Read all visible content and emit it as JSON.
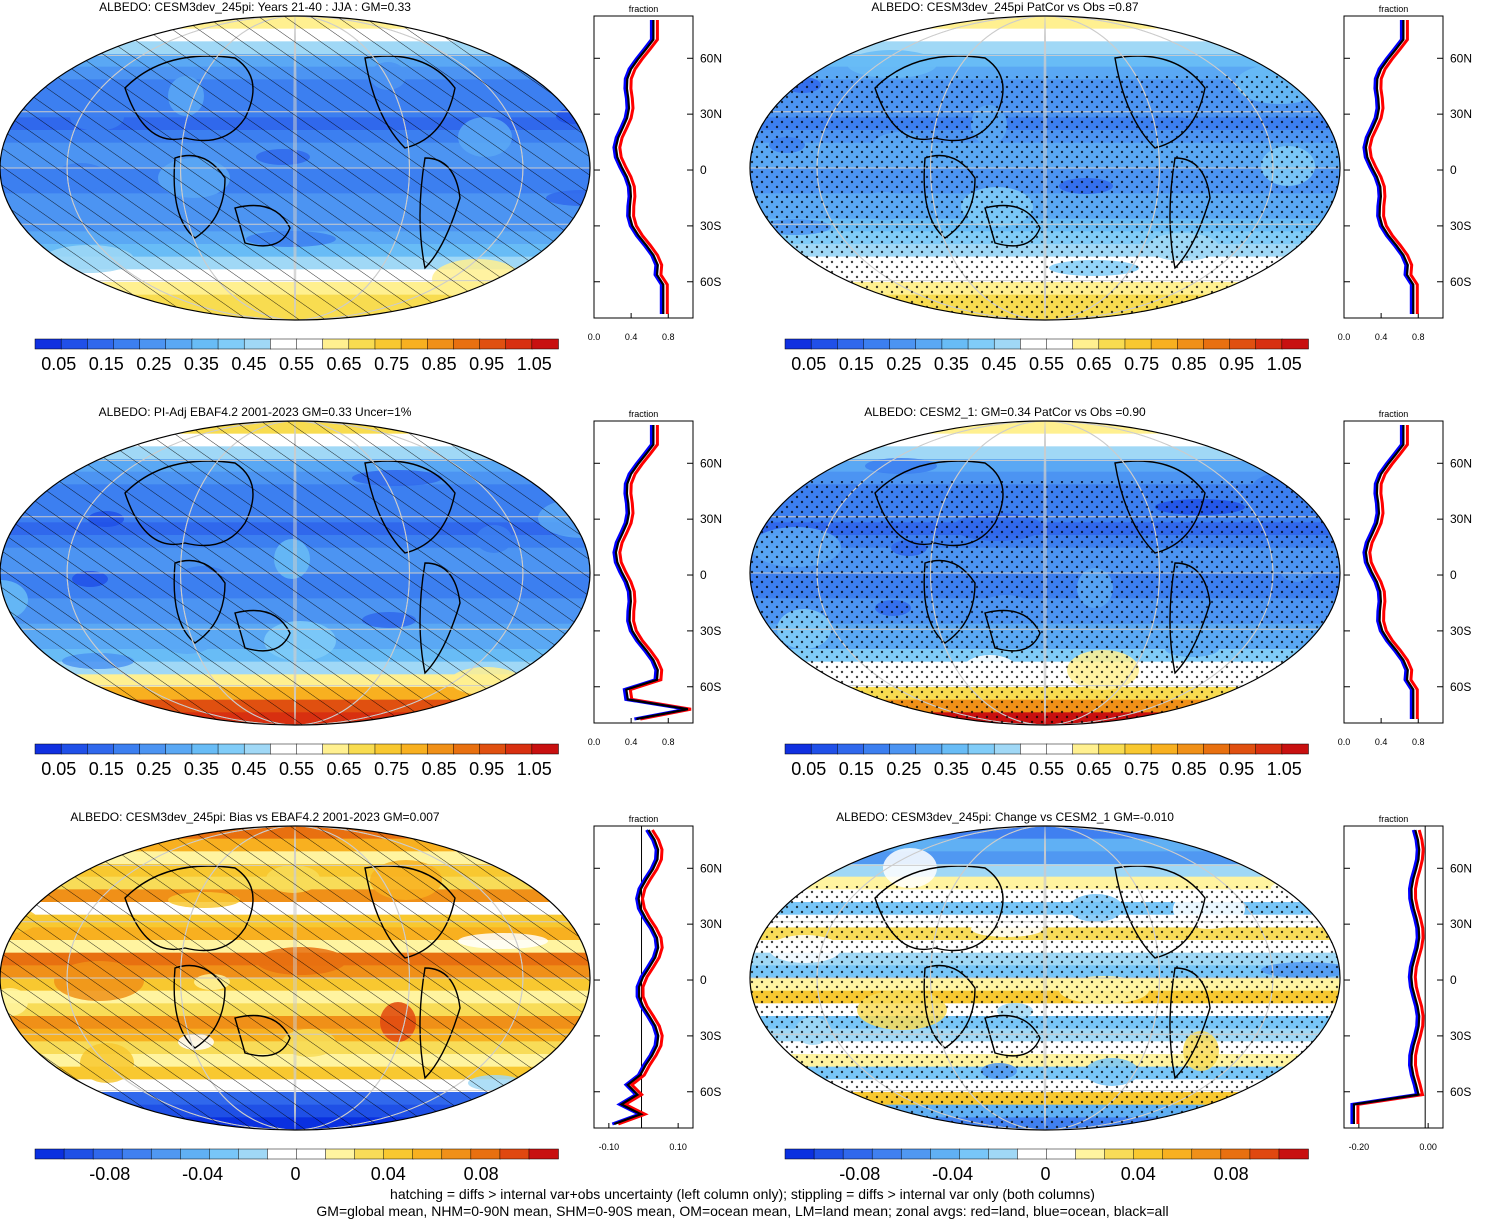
{
  "colors": {
    "seq": [
      "#1030e0",
      "#2050e8",
      "#3068ec",
      "#3c7ff0",
      "#4c94f2",
      "#5aa8f4",
      "#68bcf6",
      "#80ccf8",
      "#a0d8f6",
      "#ffffff",
      "#ffffff",
      "#fff090",
      "#f8dc50",
      "#f8c830",
      "#f8b020",
      "#f09018",
      "#e87010",
      "#e05010",
      "#d83010",
      "#c81010"
    ],
    "div": [
      "#0a30e0",
      "#1f50e6",
      "#3068ec",
      "#4080f0",
      "#5098f2",
      "#60b0f4",
      "#78c6f8",
      "#a0d8f6",
      "#ffffff",
      "#ffffff",
      "#fff4a0",
      "#f8dc58",
      "#f8c830",
      "#f8b020",
      "#f09018",
      "#e87010",
      "#e04810",
      "#c81010"
    ],
    "land_line": "#000000",
    "zonal_land": "#ff0000",
    "zonal_ocean": "#0000ff",
    "zonal_all": "#000000"
  },
  "lat_labels": [
    "60N",
    "30N",
    "0",
    "30S",
    "60S"
  ],
  "panels": [
    {
      "title": "ALBEDO: CESM3dev_245pi: Years 21-40 : JJA : GM=0.33",
      "kind": "seq",
      "zonal_header": "fraction",
      "zonal_ticks": [
        "0.0",
        "0.4",
        "0.8"
      ],
      "cbar_labels": [
        "0.05",
        "0.15",
        "0.25",
        "0.35",
        "0.45",
        "0.55",
        "0.65",
        "0.75",
        "0.85",
        "0.95",
        "1.05"
      ]
    },
    {
      "title": "ALBEDO: CESM3dev_245pi PatCor vs Obs =0.87",
      "kind": "seq",
      "zonal_header": "fraction",
      "zonal_ticks": [
        "0.0",
        "0.4",
        "0.8"
      ],
      "cbar_labels": [
        "0.05",
        "0.15",
        "0.25",
        "0.35",
        "0.45",
        "0.55",
        "0.65",
        "0.75",
        "0.85",
        "0.95",
        "1.05"
      ]
    },
    {
      "title": "ALBEDO: PI-Adj EBAF4.2 2001-2023 GM=0.33 Uncer=1%",
      "kind": "seq",
      "zonal_header": "fraction",
      "zonal_ticks": [
        "0.0",
        "0.4",
        "0.8"
      ],
      "cbar_labels": [
        "0.05",
        "0.15",
        "0.25",
        "0.35",
        "0.45",
        "0.55",
        "0.65",
        "0.75",
        "0.85",
        "0.95",
        "1.05"
      ]
    },
    {
      "title": "ALBEDO: CESM2_1: GM=0.34 PatCor vs Obs =0.90",
      "kind": "seq",
      "zonal_header": "fraction",
      "zonal_ticks": [
        "0.0",
        "0.4",
        "0.8"
      ],
      "cbar_labels": [
        "0.05",
        "0.15",
        "0.25",
        "0.35",
        "0.45",
        "0.55",
        "0.65",
        "0.75",
        "0.85",
        "0.95",
        "1.05"
      ]
    },
    {
      "title": "ALBEDO: CESM3dev_245pi: Bias vs EBAF4.2 2001-2023 GM=0.007",
      "kind": "div",
      "zonal_header": "fraction",
      "zonal_ticks": [
        "-0.10",
        "0.10"
      ],
      "cbar_labels": [
        "-0.08",
        "-0.04",
        "0",
        "0.04",
        "0.08"
      ]
    },
    {
      "title": "ALBEDO: CESM3dev_245pi: Change vs CESM2_1 GM=-0.010",
      "kind": "div",
      "zonal_header": "fraction",
      "zonal_ticks": [
        "-0.20",
        "0.00"
      ],
      "cbar_labels": [
        "-0.08",
        "-0.04",
        "0",
        "0.04",
        "0.08"
      ]
    }
  ],
  "footer": {
    "line1": "hatching = diffs > internal var+obs uncertainty (left column only); stippling = diffs > internal var only (both columns)",
    "line2": "GM=global mean, NHM=0-90N mean, SHM=0-90S mean, OM=ocean mean, LM=land mean; zonal avgs: red=land, blue=ocean, black=all"
  }
}
